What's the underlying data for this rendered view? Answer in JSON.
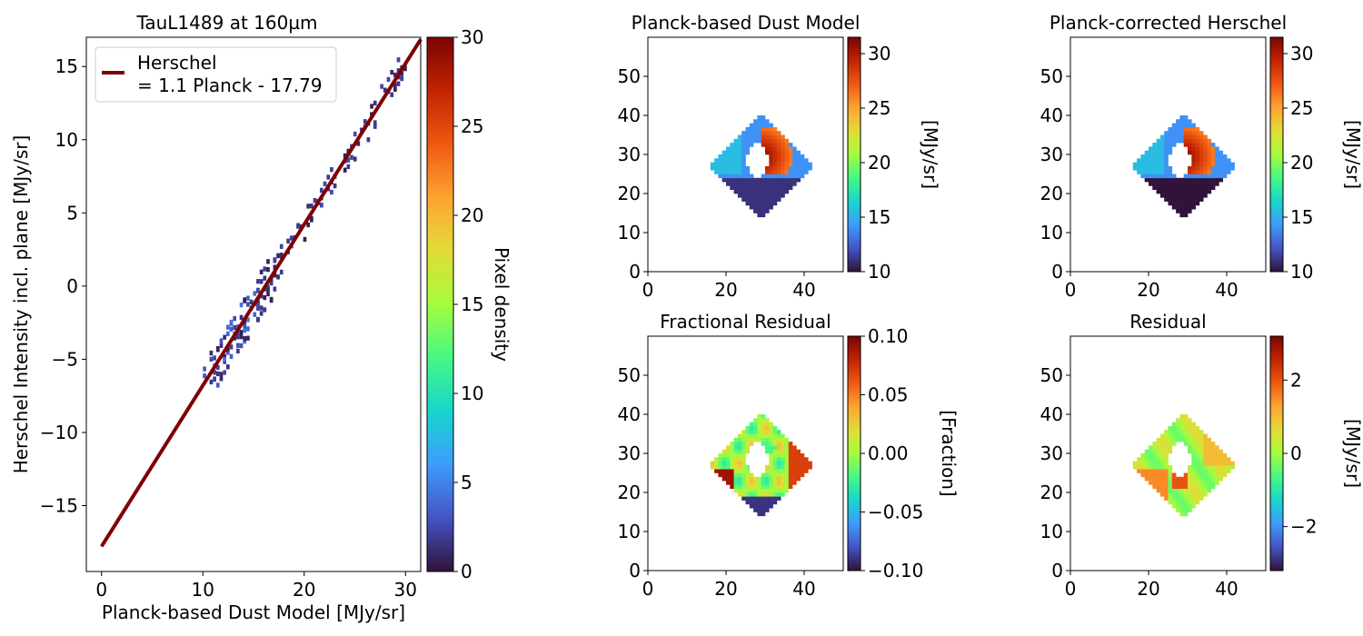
{
  "chart_data": [
    {
      "type": "scatter",
      "title": "TauL1489 at 160µm",
      "xlabel": "Planck-based Dust Model [MJy/sr]",
      "ylabel": "Herschel Intensity incl. plane [MJy/sr]",
      "xlim": [
        -1.5,
        31.5
      ],
      "ylim": [
        -19.5,
        17
      ],
      "xticks": [
        "0",
        "10",
        "20",
        "30"
      ],
      "yticks": [
        "−15",
        "−10",
        "−5",
        "0",
        "5",
        "10",
        "15"
      ],
      "fit_line": {
        "slope": 1.1,
        "intercept": -17.79,
        "x_range": [
          0,
          31.5
        ],
        "color": "#7f0000"
      },
      "legend": {
        "label_line1": "Herschel",
        "label_line2": "= 1.1 Planck - 17.79",
        "position": "top-left"
      },
      "colorbar": {
        "label": "Pixel density",
        "range": [
          0,
          30
        ],
        "ticks": [
          "0",
          "5",
          "10",
          "15",
          "20",
          "25",
          "30"
        ],
        "colormap": "turbo"
      },
      "series": [
        {
          "type": "2d-histogram",
          "x_range": [
            10,
            30
          ],
          "y_range": [
            -7,
            15.5
          ],
          "density_typical": "1-3"
        }
      ]
    },
    {
      "type": "heatmap",
      "title": "Planck-based Dust Model",
      "xlim": [
        0,
        50
      ],
      "ylim": [
        0,
        60
      ],
      "xticks": [
        "0",
        "20",
        "40"
      ],
      "yticks": [
        "0",
        "10",
        "20",
        "30",
        "40",
        "50"
      ],
      "colorbar": {
        "label": "[MJy/sr]",
        "range": [
          10,
          31.5
        ],
        "ticks": [
          "10",
          "15",
          "20",
          "25",
          "30"
        ],
        "colormap": "turbo"
      }
    },
    {
      "type": "heatmap",
      "title": "Planck-corrected Herschel",
      "xlim": [
        0,
        50
      ],
      "ylim": [
        0,
        60
      ],
      "xticks": [
        "0",
        "20",
        "40"
      ],
      "yticks": [
        "0",
        "10",
        "20",
        "30",
        "40",
        "50"
      ],
      "colorbar": {
        "label": "[MJy/sr]",
        "range": [
          10,
          31.5
        ],
        "ticks": [
          "10",
          "15",
          "20",
          "25",
          "30"
        ],
        "colormap": "turbo"
      }
    },
    {
      "type": "heatmap",
      "title": "Fractional Residual",
      "xlim": [
        0,
        50
      ],
      "ylim": [
        0,
        60
      ],
      "xticks": [
        "0",
        "20",
        "40"
      ],
      "yticks": [
        "0",
        "10",
        "20",
        "30",
        "40",
        "50"
      ],
      "colorbar": {
        "label": "[Fraction]",
        "range": [
          -0.1,
          0.1
        ],
        "ticks": [
          "−0.10",
          "−0.05",
          "0.00",
          "0.05",
          "0.10"
        ],
        "colormap": "turbo"
      }
    },
    {
      "type": "heatmap",
      "title": "Residual",
      "xlim": [
        0,
        50
      ],
      "ylim": [
        0,
        60
      ],
      "xticks": [
        "0",
        "20",
        "40"
      ],
      "yticks": [
        "0",
        "10",
        "20",
        "30",
        "40",
        "50"
      ],
      "colorbar": {
        "label": "[MJy/sr]",
        "range": [
          -3.2,
          3.2
        ],
        "ticks": [
          "−2",
          "0",
          "2"
        ],
        "colormap": "turbo"
      }
    }
  ]
}
